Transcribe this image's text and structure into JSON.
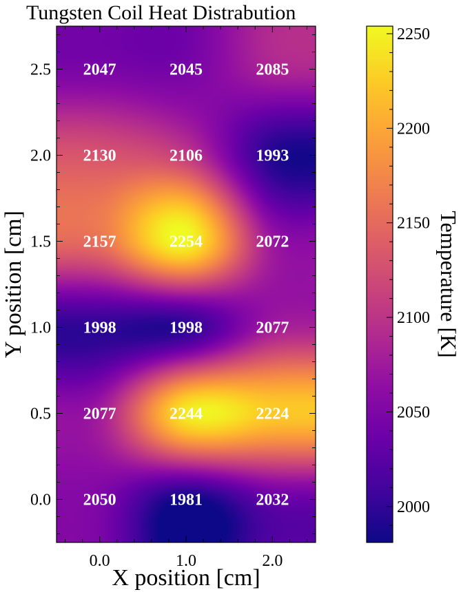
{
  "chart_data": {
    "type": "heatmap",
    "title": "Tungsten Coil Heat Distrabution",
    "xlabel": "X position [cm]",
    "ylabel": "Y position [cm]",
    "colorbar_label": "Temperature [K]",
    "colormap": "plasma",
    "interpolation": "bicubic",
    "x_ticks": [
      {
        "value": 0.0,
        "label": "0.0"
      },
      {
        "value": 1.0,
        "label": "1.0"
      },
      {
        "value": 2.0,
        "label": "2.0"
      }
    ],
    "y_ticks": [
      {
        "value": 0.0,
        "label": "0.0"
      },
      {
        "value": 0.5,
        "label": "0.5"
      },
      {
        "value": 1.0,
        "label": "1.0"
      },
      {
        "value": 1.5,
        "label": "1.5"
      },
      {
        "value": 2.0,
        "label": "2.0"
      },
      {
        "value": 2.5,
        "label": "2.5"
      }
    ],
    "xlim": [
      -0.5,
      2.5
    ],
    "ylim": [
      -0.25,
      2.75
    ],
    "x": [
      0.0,
      1.0,
      2.0
    ],
    "y": [
      0.0,
      0.5,
      1.0,
      1.5,
      2.0,
      2.5
    ],
    "z": [
      [
        2050,
        1981,
        2032
      ],
      [
        2077,
        2244,
        2224
      ],
      [
        1998,
        1998,
        2077
      ],
      [
        2157,
        2254,
        2072
      ],
      [
        2130,
        2106,
        1993
      ],
      [
        2047,
        2045,
        2085
      ]
    ],
    "labels": [
      [
        "2050",
        "1981",
        "2032"
      ],
      [
        "2077",
        "2244",
        "2224"
      ],
      [
        "1998",
        "1998",
        "2077"
      ],
      [
        "2157",
        "2254",
        "2072"
      ],
      [
        "2130",
        "2106",
        "1993"
      ],
      [
        "2047",
        "2045",
        "2085"
      ]
    ],
    "colorbar_range": [
      1981,
      2254
    ],
    "colorbar_ticks": [
      {
        "value": 2000,
        "label": "2000"
      },
      {
        "value": 2050,
        "label": "2050"
      },
      {
        "value": 2100,
        "label": "2100"
      },
      {
        "value": 2150,
        "label": "2150"
      },
      {
        "value": 2200,
        "label": "2200"
      },
      {
        "value": 2250,
        "label": "2250"
      }
    ]
  }
}
